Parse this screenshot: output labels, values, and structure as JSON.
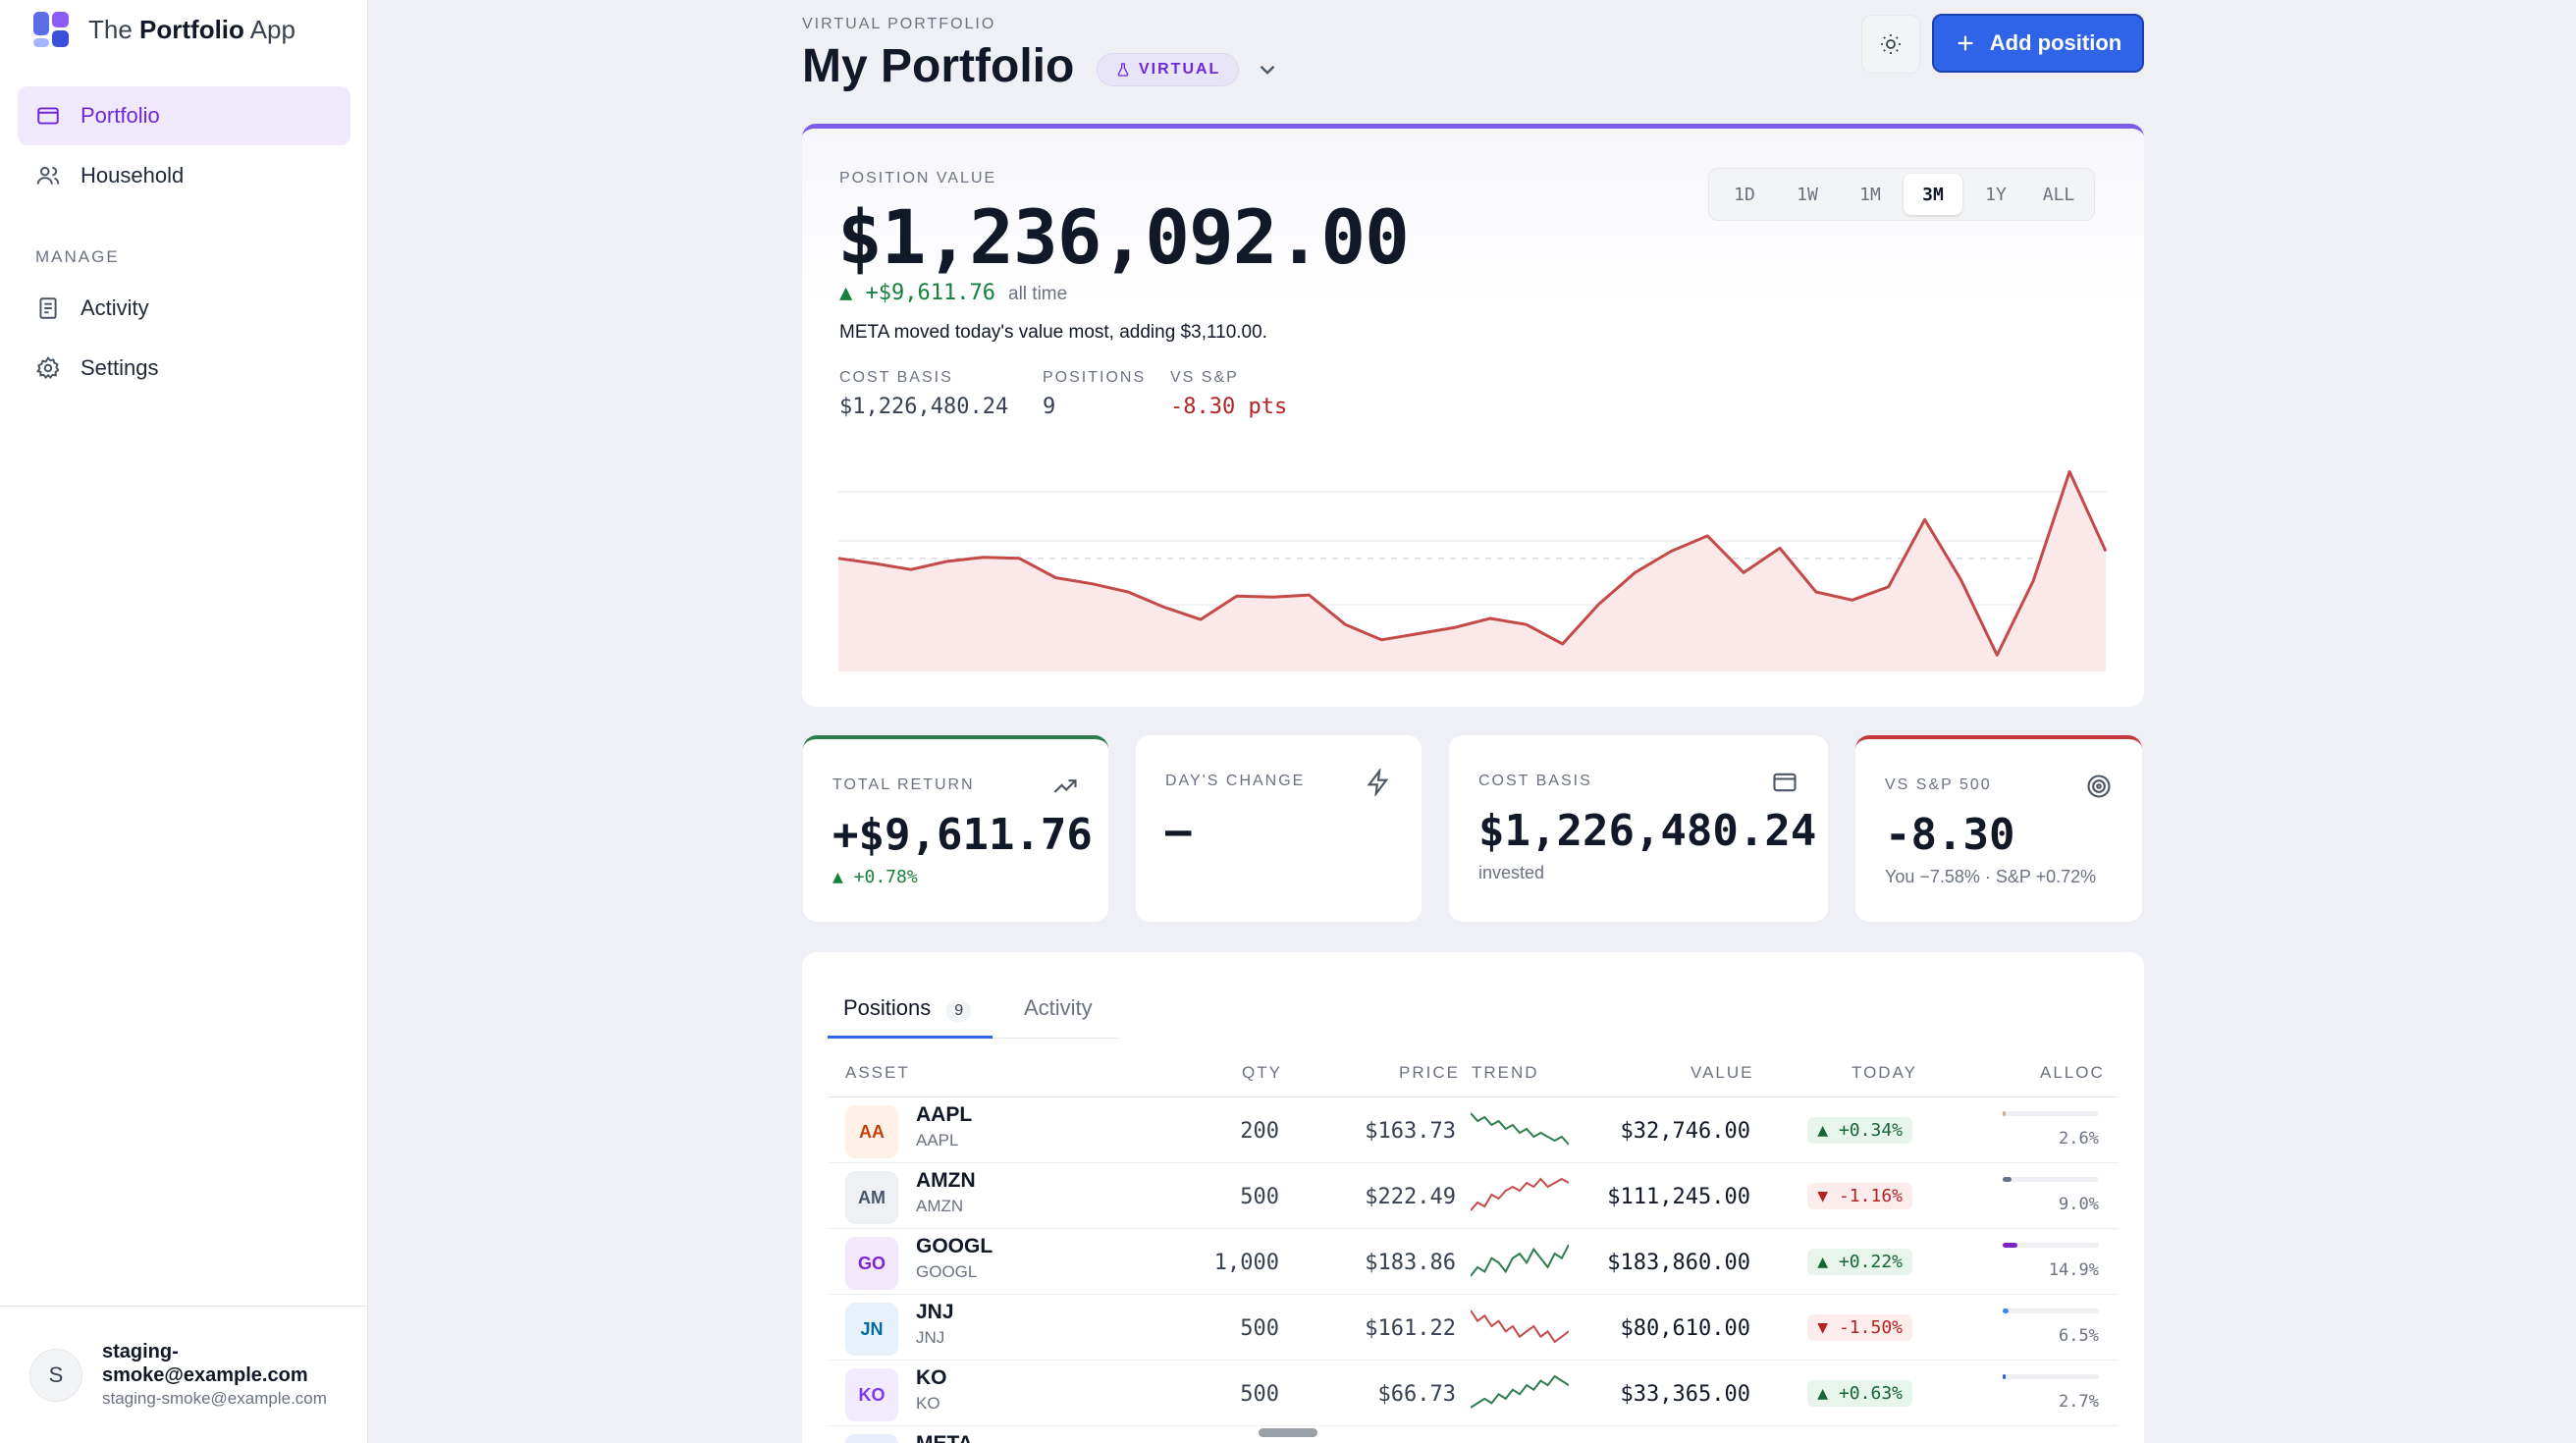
{
  "app": {
    "brand_prefix": "The",
    "brand_bold": "Portfolio",
    "brand_suffix": "App"
  },
  "sidebar": {
    "items": [
      {
        "label": "Portfolio",
        "icon": "wallet-icon",
        "active": true
      },
      {
        "label": "Household",
        "icon": "users-icon",
        "active": false
      }
    ],
    "section_label": "MANAGE",
    "manage_items": [
      {
        "label": "Activity",
        "icon": "receipt-icon"
      },
      {
        "label": "Settings",
        "icon": "gear-icon"
      }
    ],
    "user": {
      "initial": "S",
      "name": "staging-smoke@example.com",
      "email": "staging-smoke@example.com"
    }
  },
  "header": {
    "eyebrow": "VIRTUAL PORTFOLIO",
    "title": "My Portfolio",
    "badge": "VIRTUAL",
    "add_button": "Add position"
  },
  "hero": {
    "label": "POSITION VALUE",
    "value": "$1,236,092.00",
    "change": "▲ +$9,611.76",
    "change_period": "all time",
    "note": "META moved today's value most, adding $3,110.00.",
    "stats": [
      {
        "label": "COST BASIS",
        "value": "$1,226,480.24"
      },
      {
        "label": "POSITIONS",
        "value": "9"
      },
      {
        "label": "VS S&P",
        "value": "-8.30 pts"
      }
    ],
    "ranges": [
      "1D",
      "1W",
      "1M",
      "3M",
      "1Y",
      "ALL"
    ],
    "active_range": "3M"
  },
  "chart_data": {
    "type": "area",
    "title": "",
    "xlabel": "",
    "ylabel": "",
    "series": [
      {
        "values": [
          1232100,
          1231600,
          1231000,
          1231800,
          1232200,
          1232100,
          1230200,
          1229600,
          1228800,
          1227300,
          1226100,
          1228400,
          1228300,
          1228500,
          1225600,
          1224100,
          1224700,
          1225300,
          1226200,
          1225600,
          1223700,
          1227600,
          1230700,
          1232800,
          1234300,
          1230700,
          1233100,
          1228800,
          1228000,
          1229300,
          1235900,
          1230000,
          1222600,
          1229900,
          1240600,
          1232800
        ]
      }
    ],
    "color": "#c44a4a",
    "fill": "#fbe9e9",
    "reference_line": 1232100
  },
  "kpis": [
    {
      "label": "TOTAL RETURN",
      "value": "+$9,611.76",
      "sub": "▲ +0.78%",
      "icon": "trending-up-icon"
    },
    {
      "label": "DAY'S CHANGE",
      "value": "—",
      "sub": "",
      "icon": "bolt-icon"
    },
    {
      "label": "COST BASIS",
      "value": "$1,226,480.24",
      "sub": "invested",
      "icon": "wallet-icon"
    },
    {
      "label": "VS S&P 500",
      "value": "-8.30",
      "sub": "You −7.58% · S&P +0.72%",
      "icon": "target-icon"
    }
  ],
  "positions": {
    "tabs": [
      {
        "label": "Positions",
        "count": "9"
      },
      {
        "label": "Activity"
      }
    ],
    "columns": [
      "ASSET",
      "QTY",
      "PRICE",
      "TREND",
      "VALUE",
      "TODAY",
      "ALLOC"
    ],
    "rows": [
      {
        "badge": "AA",
        "symbol": "AAPL",
        "name": "AAPL",
        "qty": "200",
        "price": "$163.73",
        "value": "$32,746.00",
        "today": "▲ +0.34%",
        "dir": "up",
        "alloc": "2.6%",
        "alloc_pct": 2.6,
        "color": "#c2410c",
        "badge_bg": "#fdf1e7",
        "bar": "#c9b38a",
        "trend": [
          9,
          7,
          8,
          6,
          7,
          5,
          6,
          4,
          5,
          3,
          4,
          3,
          2,
          3,
          1
        ]
      },
      {
        "badge": "AM",
        "symbol": "AMZN",
        "name": "AMZN",
        "qty": "500",
        "price": "$222.49",
        "value": "$111,245.00",
        "today": "▼ -1.16%",
        "dir": "down",
        "alloc": "9.0%",
        "alloc_pct": 9.0,
        "color": "#475569",
        "badge_bg": "#eef0f3",
        "bar": "#64748b",
        "trend": [
          1,
          3,
          2,
          5,
          4,
          6,
          7,
          6,
          8,
          7,
          9,
          7,
          8,
          9,
          8
        ]
      },
      {
        "badge": "GO",
        "symbol": "GOOGL",
        "name": "GOOGL",
        "qty": "1,000",
        "price": "$183.86",
        "value": "$183,860.00",
        "today": "▲ +0.22%",
        "dir": "up",
        "alloc": "14.9%",
        "alloc_pct": 14.9,
        "color": "#7e22ce",
        "badge_bg": "#f3e8fb",
        "bar": "#7e22ce",
        "trend": [
          2,
          4,
          3,
          6,
          5,
          3,
          6,
          7,
          5,
          8,
          6,
          4,
          7,
          6,
          9
        ]
      },
      {
        "badge": "JN",
        "symbol": "JNJ",
        "name": "JNJ",
        "qty": "500",
        "price": "$161.22",
        "value": "$80,610.00",
        "today": "▼ -1.50%",
        "dir": "down",
        "alloc": "6.5%",
        "alloc_pct": 6.5,
        "color": "#0369a1",
        "badge_bg": "#e6f1fa",
        "bar": "#3b82f6",
        "trend": [
          9,
          7,
          8,
          6,
          7,
          5,
          6,
          4,
          5,
          6,
          4,
          5,
          3,
          4,
          5
        ]
      },
      {
        "badge": "KO",
        "symbol": "KO",
        "name": "KO",
        "qty": "500",
        "price": "$66.73",
        "value": "$33,365.00",
        "today": "▲ +0.63%",
        "dir": "up",
        "alloc": "2.7%",
        "alloc_pct": 2.7,
        "color": "#7c3aed",
        "badge_bg": "#f1ebfd",
        "bar": "#2563eb",
        "trend": [
          1,
          2,
          3,
          2,
          4,
          3,
          5,
          4,
          6,
          5,
          7,
          6,
          8,
          7,
          6
        ]
      },
      {
        "badge": "ME",
        "symbol": "META",
        "name": "",
        "qty": "",
        "price": "",
        "value": "",
        "today": "",
        "dir": "up",
        "alloc": "",
        "alloc_pct": 0,
        "color": "#1d4ed8",
        "badge_bg": "#e8eefc",
        "bar": "#2563eb",
        "trend": []
      }
    ]
  }
}
